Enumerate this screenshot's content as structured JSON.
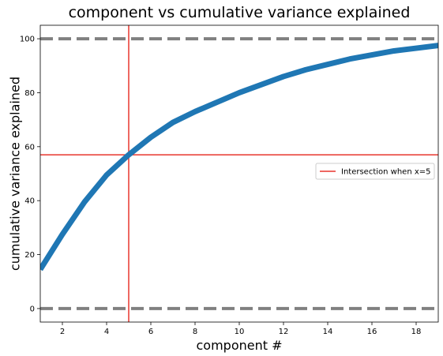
{
  "chart_data": {
    "type": "line",
    "title": "component vs cumulative variance explained",
    "xlabel": "component #",
    "ylabel": "cumulative variance explained",
    "xlim": [
      1,
      19
    ],
    "ylim": [
      -5,
      105
    ],
    "xticks": [
      2,
      4,
      6,
      8,
      10,
      12,
      14,
      16,
      18
    ],
    "yticks": [
      0,
      20,
      40,
      60,
      80,
      100
    ],
    "series": [
      {
        "color": "#1f77b4",
        "x": [
          1,
          2,
          3,
          4,
          5,
          6,
          7,
          8,
          9,
          10,
          11,
          12,
          13,
          14,
          15,
          16,
          17,
          18,
          19
        ],
        "y": [
          14.5,
          27.5,
          39.5,
          49.5,
          57,
          63.5,
          69,
          73,
          76.5,
          80,
          83,
          86,
          88.5,
          90.5,
          92.5,
          94,
          95.5,
          96.5,
          97.5
        ]
      }
    ],
    "reference_lines": [
      {
        "orientation": "horizontal",
        "value": 100,
        "color": "#808080",
        "style": "dashed"
      },
      {
        "orientation": "horizontal",
        "value": 0,
        "color": "#808080",
        "style": "dashed"
      },
      {
        "orientation": "vertical",
        "value": 5,
        "color": "#e8362e",
        "style": "solid"
      },
      {
        "orientation": "horizontal",
        "value": 57,
        "color": "#e8362e",
        "style": "solid"
      }
    ],
    "legend": {
      "placement": "center-right",
      "entries": [
        {
          "label": "Intersection when x=5",
          "color": "#e8362e"
        }
      ]
    },
    "grid": false
  }
}
